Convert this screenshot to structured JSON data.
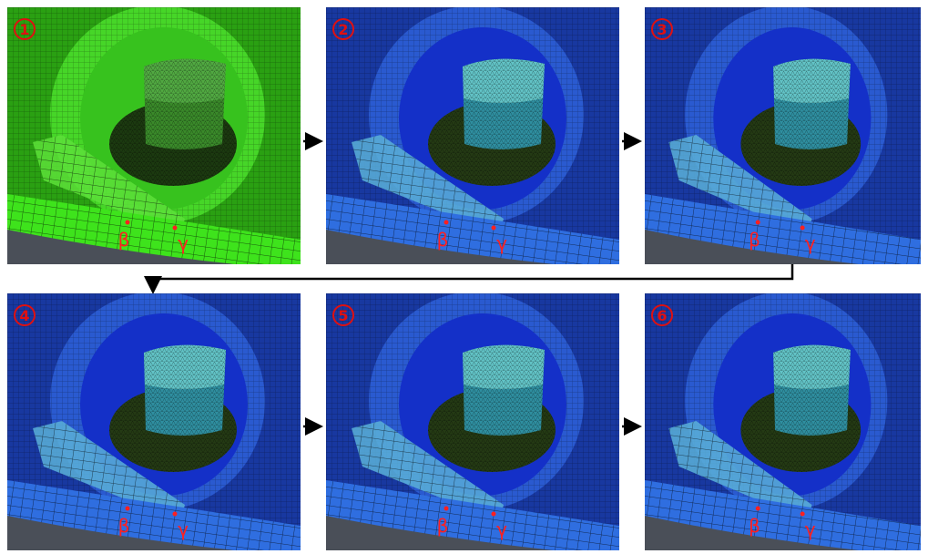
{
  "panels": [
    {
      "number": "1",
      "labels": [
        "β",
        "γ"
      ]
    },
    {
      "number": "2",
      "labels": [
        "β",
        "γ"
      ]
    },
    {
      "number": "3",
      "labels": [
        "β",
        "γ"
      ]
    },
    {
      "number": "4",
      "labels": [
        "β",
        "γ"
      ]
    },
    {
      "number": "5",
      "labels": [
        "β",
        "γ"
      ]
    },
    {
      "number": "6",
      "labels": [
        "β",
        "γ"
      ]
    }
  ]
}
